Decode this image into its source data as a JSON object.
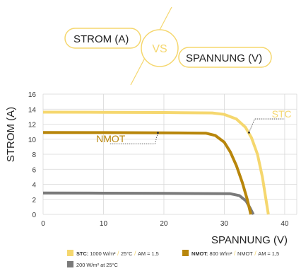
{
  "header": {
    "left_label": "STROM (A)",
    "vs_label": "VS",
    "right_label": "SPANNUNG (V)"
  },
  "chart_data": {
    "type": "line",
    "title": "",
    "xlabel": "SPANNUNG (V)",
    "ylabel": "STROM (A)",
    "xlim": [
      0,
      42
    ],
    "ylim": [
      0,
      16
    ],
    "xticks": [
      0,
      10,
      20,
      30,
      40
    ],
    "yticks": [
      0,
      2,
      4,
      6,
      8,
      10,
      12,
      14,
      16
    ],
    "grid": true,
    "series": [
      {
        "name": "STC",
        "color": "#f5d76e",
        "points": [
          [
            0,
            13.6
          ],
          [
            10,
            13.58
          ],
          [
            20,
            13.55
          ],
          [
            28,
            13.5
          ],
          [
            30,
            13.3
          ],
          [
            32,
            12.7
          ],
          [
            33.5,
            11.6
          ],
          [
            34.5,
            10.2
          ],
          [
            35.5,
            8.0
          ],
          [
            36.3,
            5.0
          ],
          [
            36.9,
            2.0
          ],
          [
            37.3,
            0
          ]
        ]
      },
      {
        "name": "NMOT",
        "color": "#b8860b",
        "points": [
          [
            0,
            10.9
          ],
          [
            10,
            10.88
          ],
          [
            20,
            10.85
          ],
          [
            27,
            10.8
          ],
          [
            28.5,
            10.5
          ],
          [
            30,
            9.6
          ],
          [
            31,
            8.3
          ],
          [
            32,
            6.5
          ],
          [
            33,
            4.2
          ],
          [
            33.8,
            2.0
          ],
          [
            34.4,
            0
          ]
        ]
      },
      {
        "name": "200 W/m² at 25°C",
        "color": "#7a7a7a",
        "points": [
          [
            0,
            2.85
          ],
          [
            10,
            2.82
          ],
          [
            20,
            2.8
          ],
          [
            31,
            2.75
          ],
          [
            32.5,
            2.5
          ],
          [
            33.6,
            1.8
          ],
          [
            34.3,
            0.8
          ],
          [
            34.8,
            0
          ]
        ]
      }
    ],
    "annotations": [
      {
        "text": "STC",
        "series": "STC"
      },
      {
        "text": "NMOT",
        "series": "NMOT"
      }
    ],
    "legend": [
      {
        "name": "STC",
        "bold": "STC:",
        "parts": [
          "1000 W/m²",
          "25°C",
          "AM = 1,5"
        ],
        "color": "#f5d76e"
      },
      {
        "name": "NMOT",
        "bold": "NMOT:",
        "parts": [
          "800 W/m²",
          "NMOT",
          "AM = 1,5"
        ],
        "color": "#b8860b"
      },
      {
        "name": "200",
        "bold": "",
        "parts": [
          "200 W/m² at 25°C"
        ],
        "color": "#7a7a7a"
      }
    ],
    "legend_position": "bottom"
  },
  "colors": {
    "accent": "#f5d76e",
    "dark_gold": "#b8860b",
    "gray": "#7a7a7a",
    "grid": "#d8d8d8"
  }
}
